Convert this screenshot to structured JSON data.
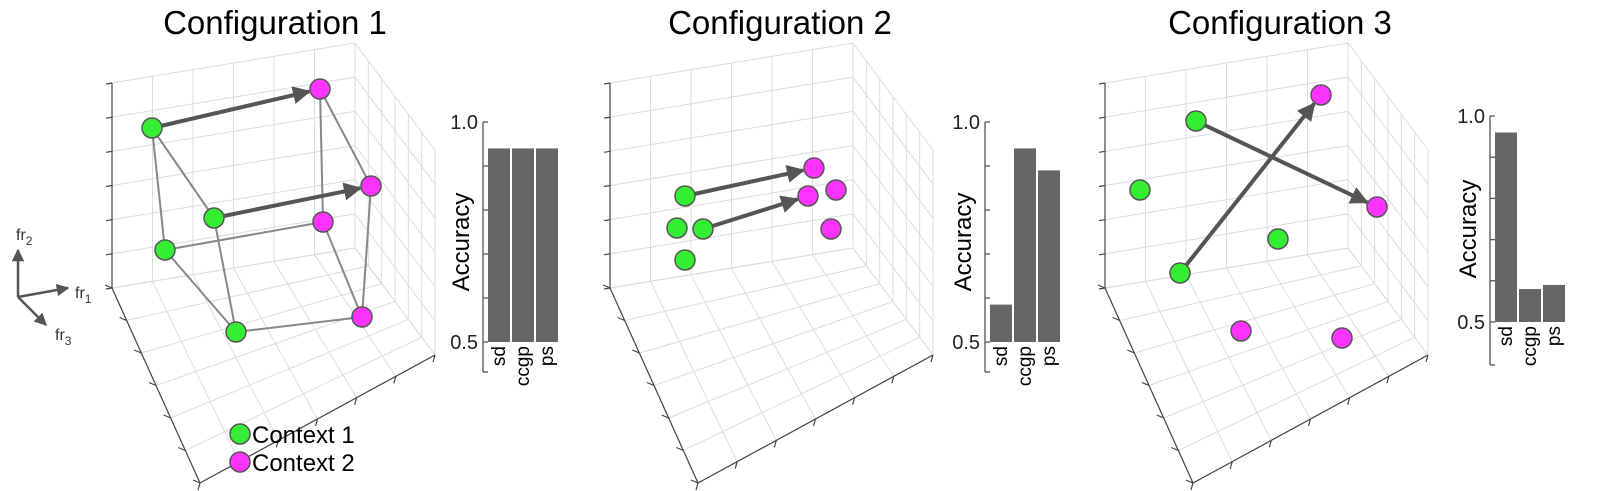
{
  "legend": {
    "context1": "Context 1",
    "context2": "Context 2"
  },
  "axes_indicator": {
    "fr1": "fr",
    "fr1_sub": "1",
    "fr2": "fr",
    "fr2_sub": "2",
    "fr3": "fr",
    "fr3_sub": "3"
  },
  "colors": {
    "context1": "#33ee33",
    "context2": "#ff33ff",
    "bar": "#666666",
    "arrow": "#555555"
  },
  "chart_data": [
    {
      "type": "bar",
      "title": "Configuration 1",
      "ylabel": "Accuracy",
      "ylim": [
        0.5,
        1.0
      ],
      "yticks": [
        "0.5",
        "1.0"
      ],
      "categories": [
        "sd",
        "ccgp",
        "ps"
      ],
      "values": [
        0.94,
        0.94,
        0.94
      ]
    },
    {
      "type": "bar",
      "title": "Configuration 2",
      "ylabel": "Accuracy",
      "ylim": [
        0.5,
        1.0
      ],
      "yticks": [
        "0.5",
        "1.0"
      ],
      "categories": [
        "sd",
        "ccgp",
        "ps"
      ],
      "values": [
        0.585,
        0.94,
        0.89
      ]
    },
    {
      "type": "bar",
      "title": "Configuration 3",
      "ylabel": "Accuracy",
      "ylim": [
        0.5,
        1.0
      ],
      "yticks": [
        "0.5",
        "1.0"
      ],
      "categories": [
        "sd",
        "ccgp",
        "ps"
      ],
      "values": [
        0.96,
        0.58,
        0.59
      ]
    }
  ]
}
